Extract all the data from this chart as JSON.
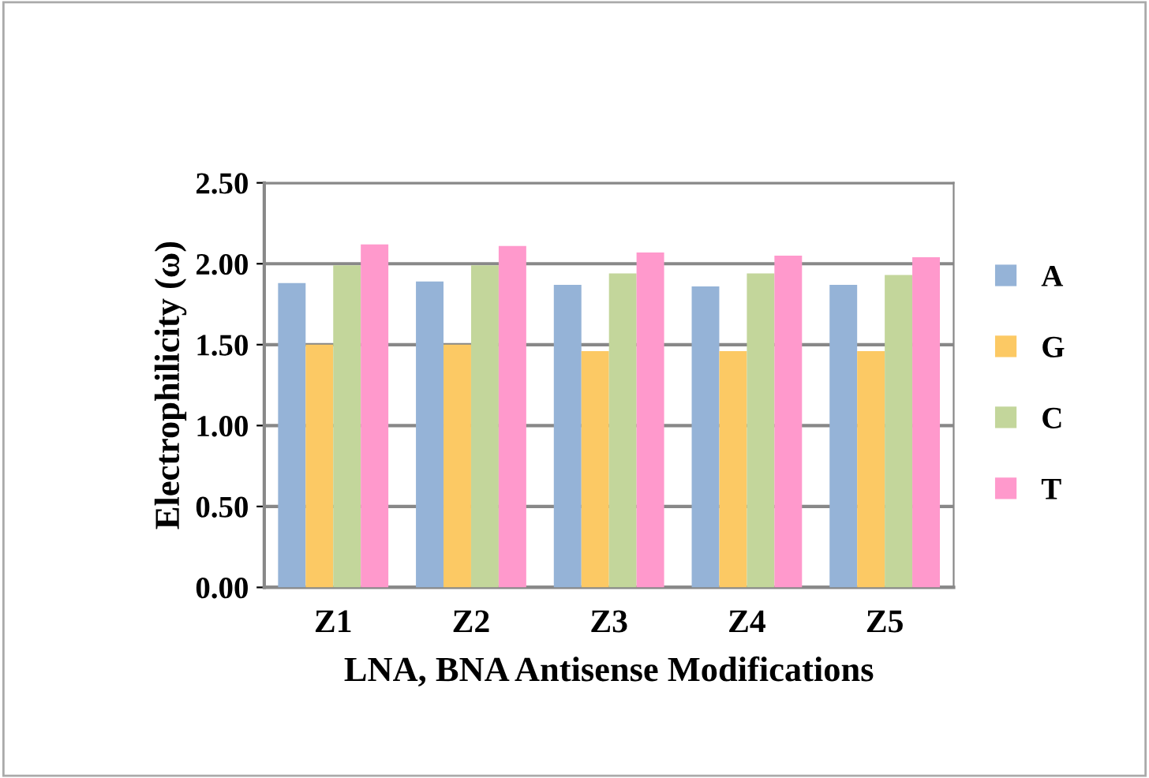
{
  "chart_data": {
    "type": "bar",
    "xlabel": "LNA, BNA Antisense Modifications",
    "ylabel": "Electrophilicity (ω)",
    "categories": [
      "Z1",
      "Z2",
      "Z3",
      "Z4",
      "Z5"
    ],
    "series": [
      {
        "name": "A",
        "color": "#95b3d7",
        "values": [
          1.88,
          1.89,
          1.87,
          1.86,
          1.87
        ]
      },
      {
        "name": "G",
        "color": "#fcc964",
        "values": [
          1.5,
          1.5,
          1.46,
          1.46,
          1.46
        ]
      },
      {
        "name": "C",
        "color": "#c3d69b",
        "values": [
          1.99,
          1.99,
          1.94,
          1.94,
          1.93
        ]
      },
      {
        "name": "T",
        "color": "#ff99cc",
        "values": [
          2.12,
          2.11,
          2.07,
          2.05,
          2.04
        ]
      }
    ],
    "ylim": [
      0,
      2.5
    ],
    "yticks": [
      {
        "value": 0,
        "label": "0.00"
      },
      {
        "value": 0.5,
        "label": "0.50"
      },
      {
        "value": 1,
        "label": "1.00"
      },
      {
        "value": 1.5,
        "label": "1.50"
      },
      {
        "value": 2,
        "label": "2.00"
      },
      {
        "value": 2.5,
        "label": "2.50"
      }
    ],
    "grid": "y",
    "legend": "right"
  }
}
